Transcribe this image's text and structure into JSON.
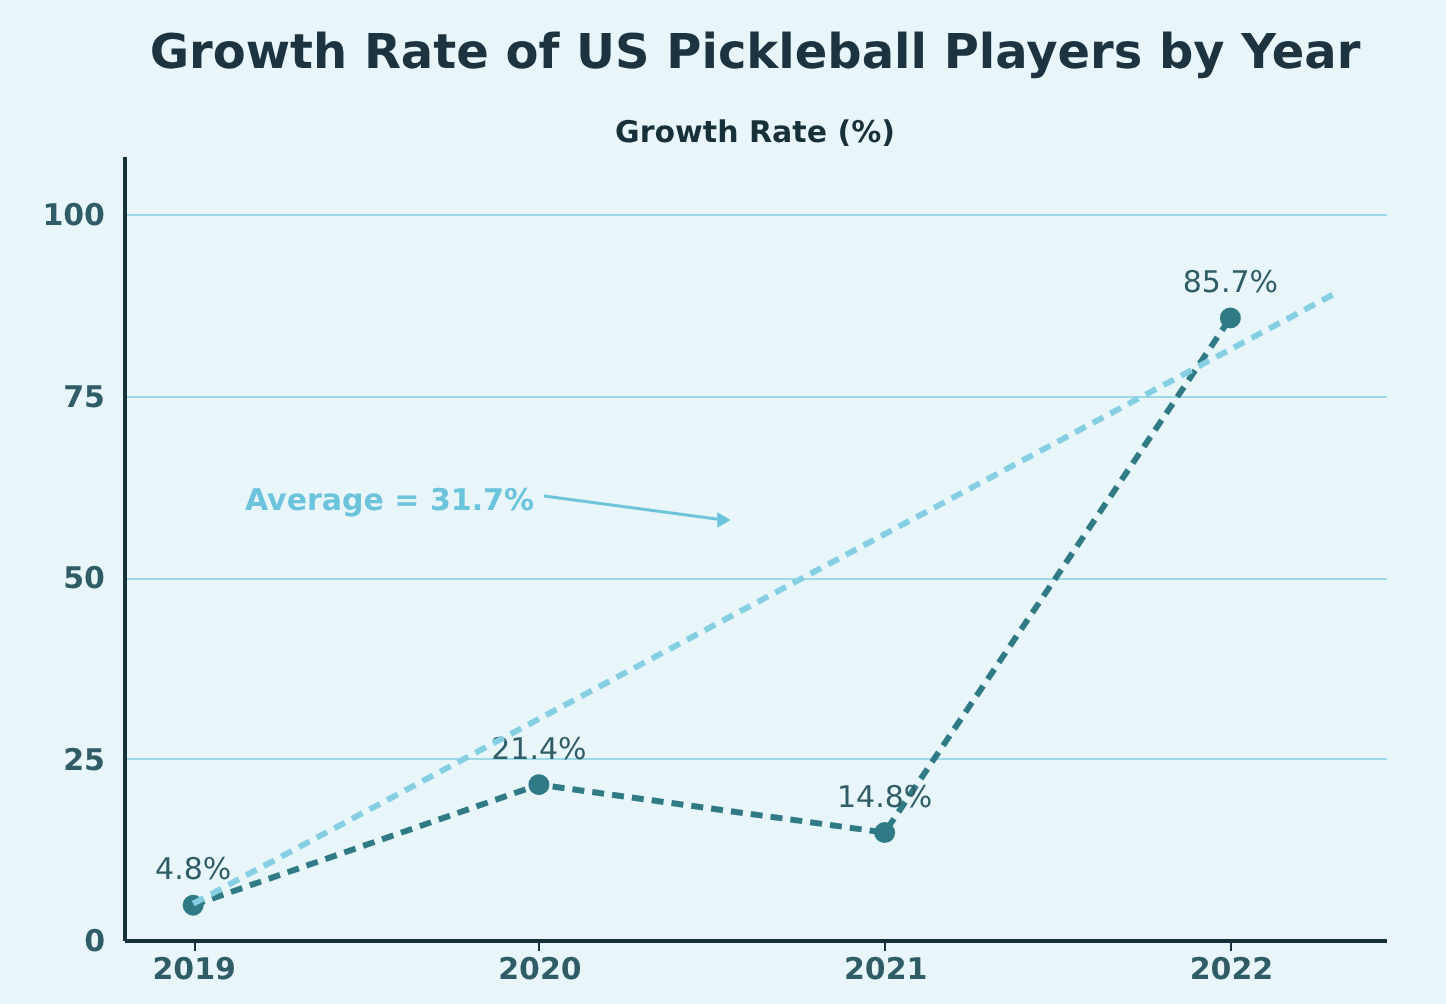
{
  "chart_data": {
    "type": "line",
    "title": "Growth Rate of US Pickleball Players by Year",
    "ylabel": "Growth Rate (%)",
    "x": [
      2019,
      2020,
      2021,
      2022
    ],
    "marker": "circle",
    "line_style": "dashed",
    "series": [
      {
        "color": "#2f7a84",
        "values": [
          4.8,
          21.4,
          14.8,
          85.7
        ],
        "value_labels": [
          "4.8%",
          "21.4%",
          "14.8%",
          "85.7%"
        ]
      },
      {
        "type": "line",
        "color": "#86cfe3",
        "x": [
          2019,
          2022.3
        ],
        "values": [
          5,
          89
        ],
        "marker": "none",
        "line_style": "dashed"
      }
    ],
    "annotations": [
      "Average = 31.7%"
    ],
    "xlim": [
      2018.8,
      2022.45
    ],
    "xticks": [
      2019,
      2020,
      2021,
      2022
    ],
    "ylim": [
      0,
      108
    ],
    "yticks": [
      0,
      25,
      50,
      75,
      100
    ],
    "grid": "y"
  }
}
